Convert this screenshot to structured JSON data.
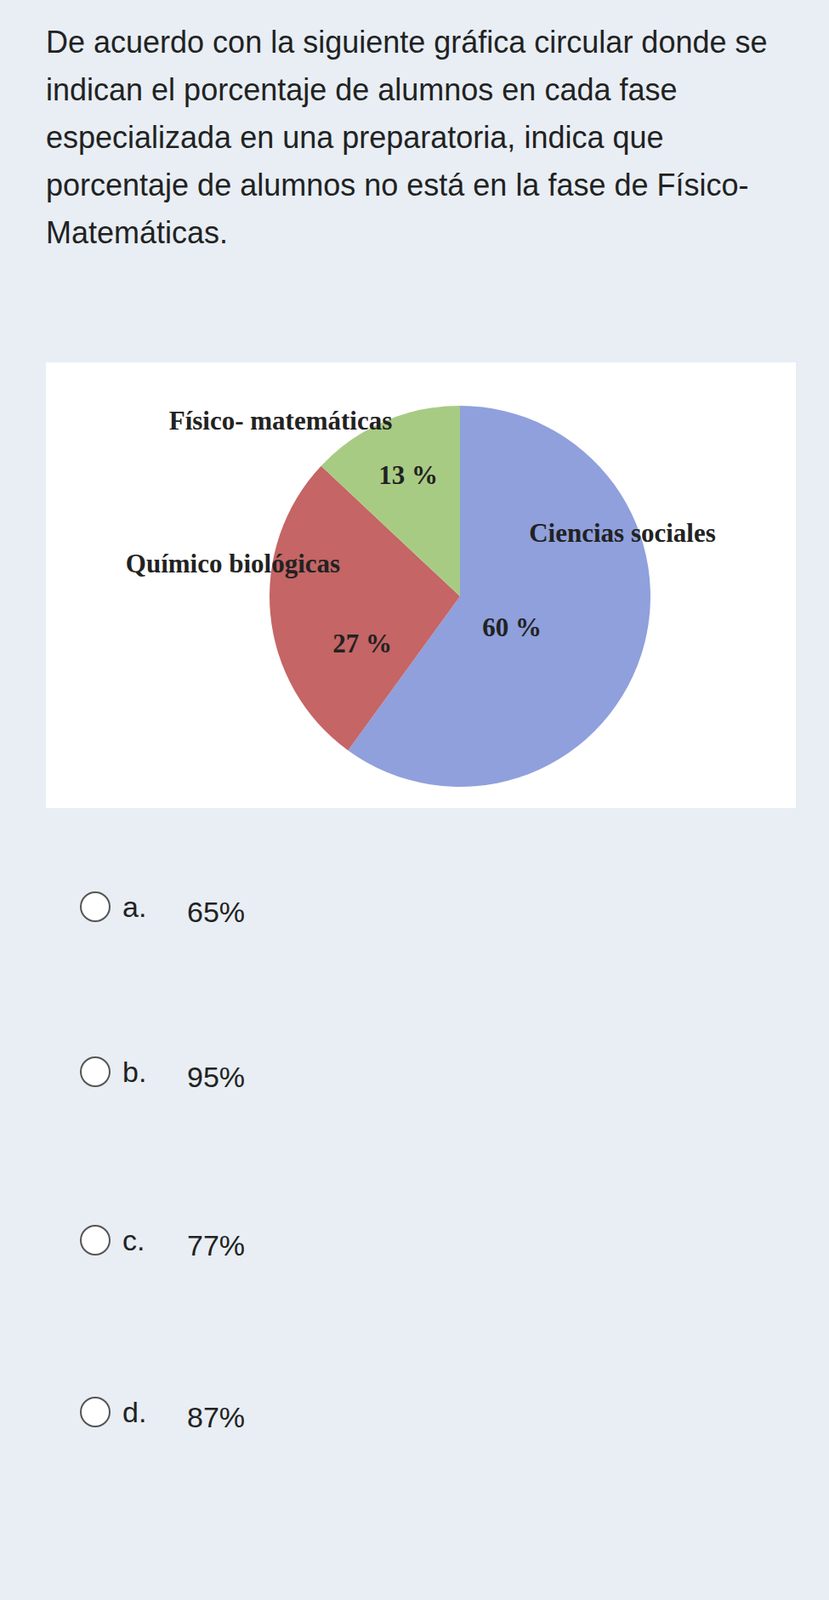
{
  "question": "De acuerdo con la siguiente gráfica circular donde se indican el porcentaje de alumnos en cada fase especializada en una preparatoria, indica que porcentaje de alumnos no está en la fase de Físico-Matemáticas.",
  "chart_data": {
    "type": "pie",
    "categories": [
      "Ciencias sociales",
      "Químico biológicas",
      "Físico- matemáticas"
    ],
    "values": [
      60,
      27,
      13
    ],
    "value_labels": [
      "60 %",
      "27 %",
      "13 %"
    ],
    "colors": [
      "#8fa0dc",
      "#c56565",
      "#a8cb84"
    ],
    "data_labels": true
  },
  "options": [
    {
      "letter": "a.",
      "text": "65%"
    },
    {
      "letter": "b.",
      "text": "95%"
    },
    {
      "letter": "c.",
      "text": "77%"
    },
    {
      "letter": "d.",
      "text": "87%"
    }
  ]
}
